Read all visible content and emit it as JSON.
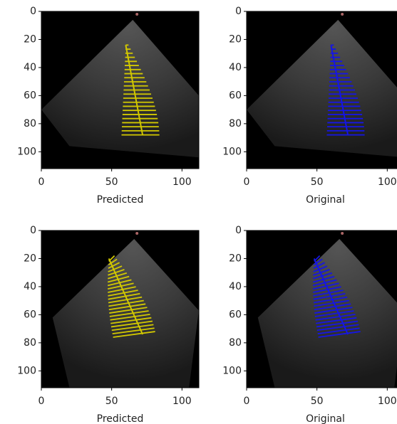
{
  "chart_data": [
    {
      "type": "image",
      "xlabel": "Predicted",
      "xlim": [
        0,
        112
      ],
      "ylim": [
        112,
        0
      ],
      "xticks": [
        0,
        50,
        100
      ],
      "yticks": [
        0,
        20,
        40,
        60,
        80,
        100
      ],
      "overlay_color": "#d2c800"
    },
    {
      "type": "image",
      "xlabel": "Original",
      "xlim": [
        0,
        112
      ],
      "ylim": [
        112,
        0
      ],
      "xticks": [
        0,
        50,
        100
      ],
      "yticks": [
        0,
        20,
        40,
        60,
        80,
        100
      ],
      "overlay_color": "#1515e6"
    },
    {
      "type": "image",
      "xlabel": "Predicted",
      "xlim": [
        0,
        112
      ],
      "ylim": [
        112,
        0
      ],
      "xticks": [
        0,
        50,
        100
      ],
      "yticks": [
        0,
        20,
        40,
        60,
        80,
        100
      ],
      "overlay_color": "#d2c800"
    },
    {
      "type": "image",
      "xlabel": "Original",
      "xlim": [
        0,
        112
      ],
      "ylim": [
        112,
        0
      ],
      "xticks": [
        0,
        50,
        100
      ],
      "yticks": [
        0,
        20,
        40,
        60,
        80,
        100
      ],
      "overlay_color": "#1515e6"
    }
  ]
}
